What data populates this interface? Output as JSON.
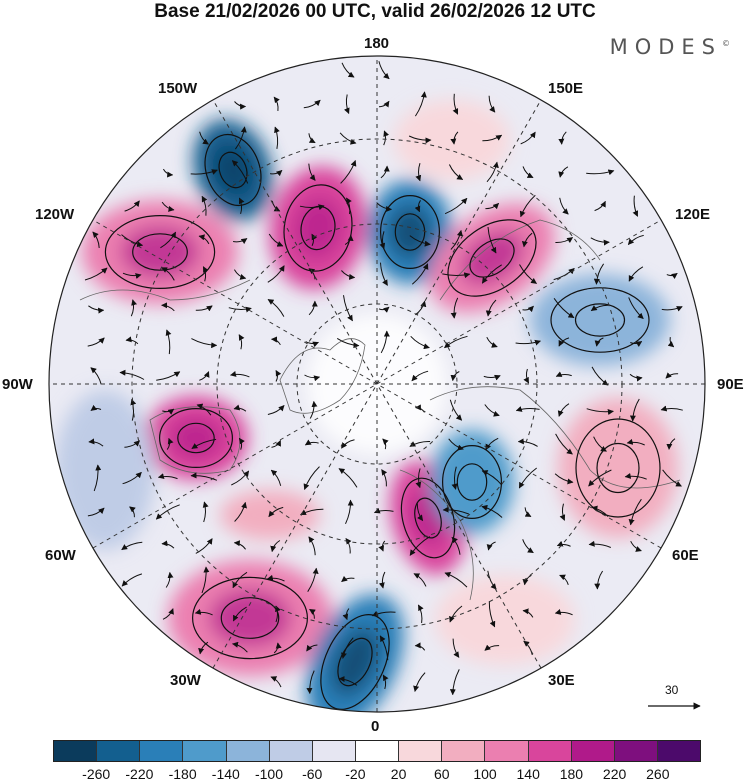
{
  "title": "Base 21/02/2026 00 UTC, valid 26/02/2026 12 UTC",
  "brand": "MODES",
  "brand_mark": "©",
  "longitudes": {
    "top": "180",
    "bottom": "0",
    "left": "90W",
    "right": "90E",
    "nw_upper": "150W",
    "nw_lower": "120W",
    "ne_upper": "150E",
    "ne_lower": "120E",
    "sw_upper": "60W",
    "sw_lower": "30W",
    "se_upper": "60E",
    "se_lower": "30E"
  },
  "reference_vector": {
    "label": "30"
  },
  "colorbar": {
    "colors": [
      "#0b3b5c",
      "#135f8f",
      "#2a7fb8",
      "#4f9bcb",
      "#8cb4da",
      "#bfcce6",
      "#e6e6f2",
      "#ffffff",
      "#f8d8dc",
      "#f2aec0",
      "#eb7fb0",
      "#d9459c",
      "#b01a8a",
      "#7e0f7e",
      "#4c0a6b"
    ],
    "ticks": [
      "-260",
      "-220",
      "-180",
      "-140",
      "-100",
      "-60",
      "-20",
      "20",
      "60",
      "100",
      "140",
      "180",
      "220",
      "260"
    ]
  },
  "anomalies": [
    {
      "name": "low-pacific-nw",
      "value": -240,
      "color": "#135f8f"
    },
    {
      "name": "high-alaska",
      "value": 180,
      "color": "#d9459c"
    },
    {
      "name": "low-east-siberia",
      "value": -180,
      "color": "#2a7fb8"
    },
    {
      "name": "high-kamchatka",
      "value": 150,
      "color": "#eb7fb0"
    },
    {
      "name": "high-west-canada",
      "value": 140,
      "color": "#eb7fb0"
    },
    {
      "name": "high-hudson-bay",
      "value": 200,
      "color": "#d9459c"
    },
    {
      "name": "high-north-atlantic",
      "value": 160,
      "color": "#eb7fb0"
    },
    {
      "name": "low-iceland",
      "value": -200,
      "color": "#2a7fb8"
    },
    {
      "name": "high-scandinavia",
      "value": 180,
      "color": "#d9459c"
    },
    {
      "name": "low-west-russia",
      "value": -120,
      "color": "#4f9bcb"
    },
    {
      "name": "low-central-siberia",
      "value": -100,
      "color": "#8cb4da"
    },
    {
      "name": "high-central-asia",
      "value": 80,
      "color": "#f2aec0"
    }
  ]
}
